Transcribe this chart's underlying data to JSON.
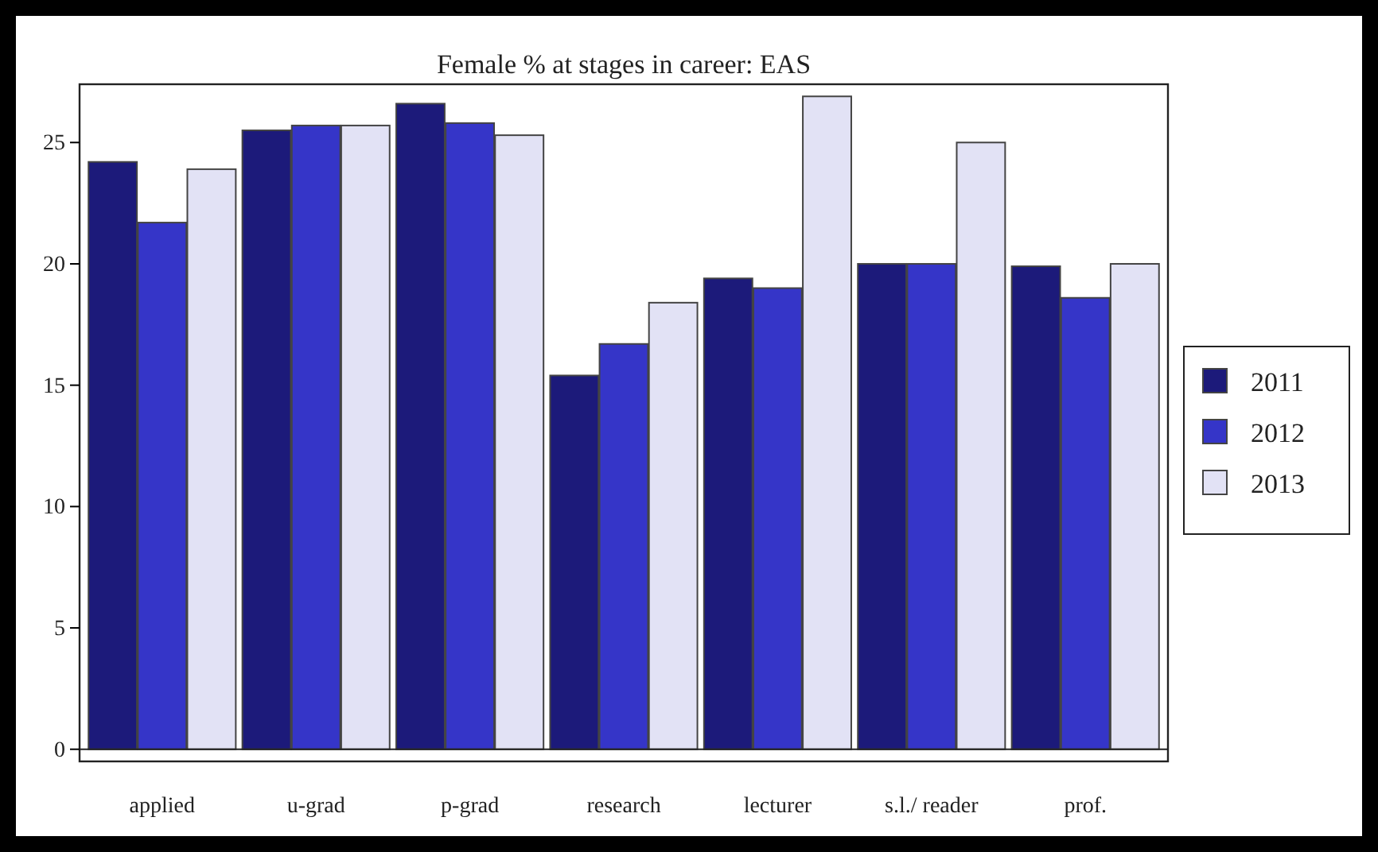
{
  "chart_data": {
    "type": "bar",
    "title": "Female % at stages in career: EAS",
    "categories": [
      "applied",
      "u-grad",
      "p-grad",
      "research",
      "lecturer",
      "s.l./ reader",
      "prof."
    ],
    "series": [
      {
        "name": "2011",
        "color": "#1c1a7a",
        "values": [
          24.2,
          25.5,
          26.6,
          15.4,
          19.4,
          20.0,
          19.9
        ]
      },
      {
        "name": "2012",
        "color": "#3535c8",
        "values": [
          21.7,
          25.7,
          25.8,
          16.7,
          19.0,
          20.0,
          18.6
        ]
      },
      {
        "name": "2013",
        "color": "#e2e2f5",
        "values": [
          23.9,
          25.7,
          25.3,
          18.4,
          26.9,
          25.0,
          20.0
        ]
      }
    ],
    "ylim": [
      -0.5,
      27.4
    ],
    "yticks": [
      0,
      5,
      10,
      15,
      20,
      25
    ],
    "ref_lines": [
      {
        "axis": "y",
        "value": 0
      }
    ],
    "legend": "right"
  }
}
